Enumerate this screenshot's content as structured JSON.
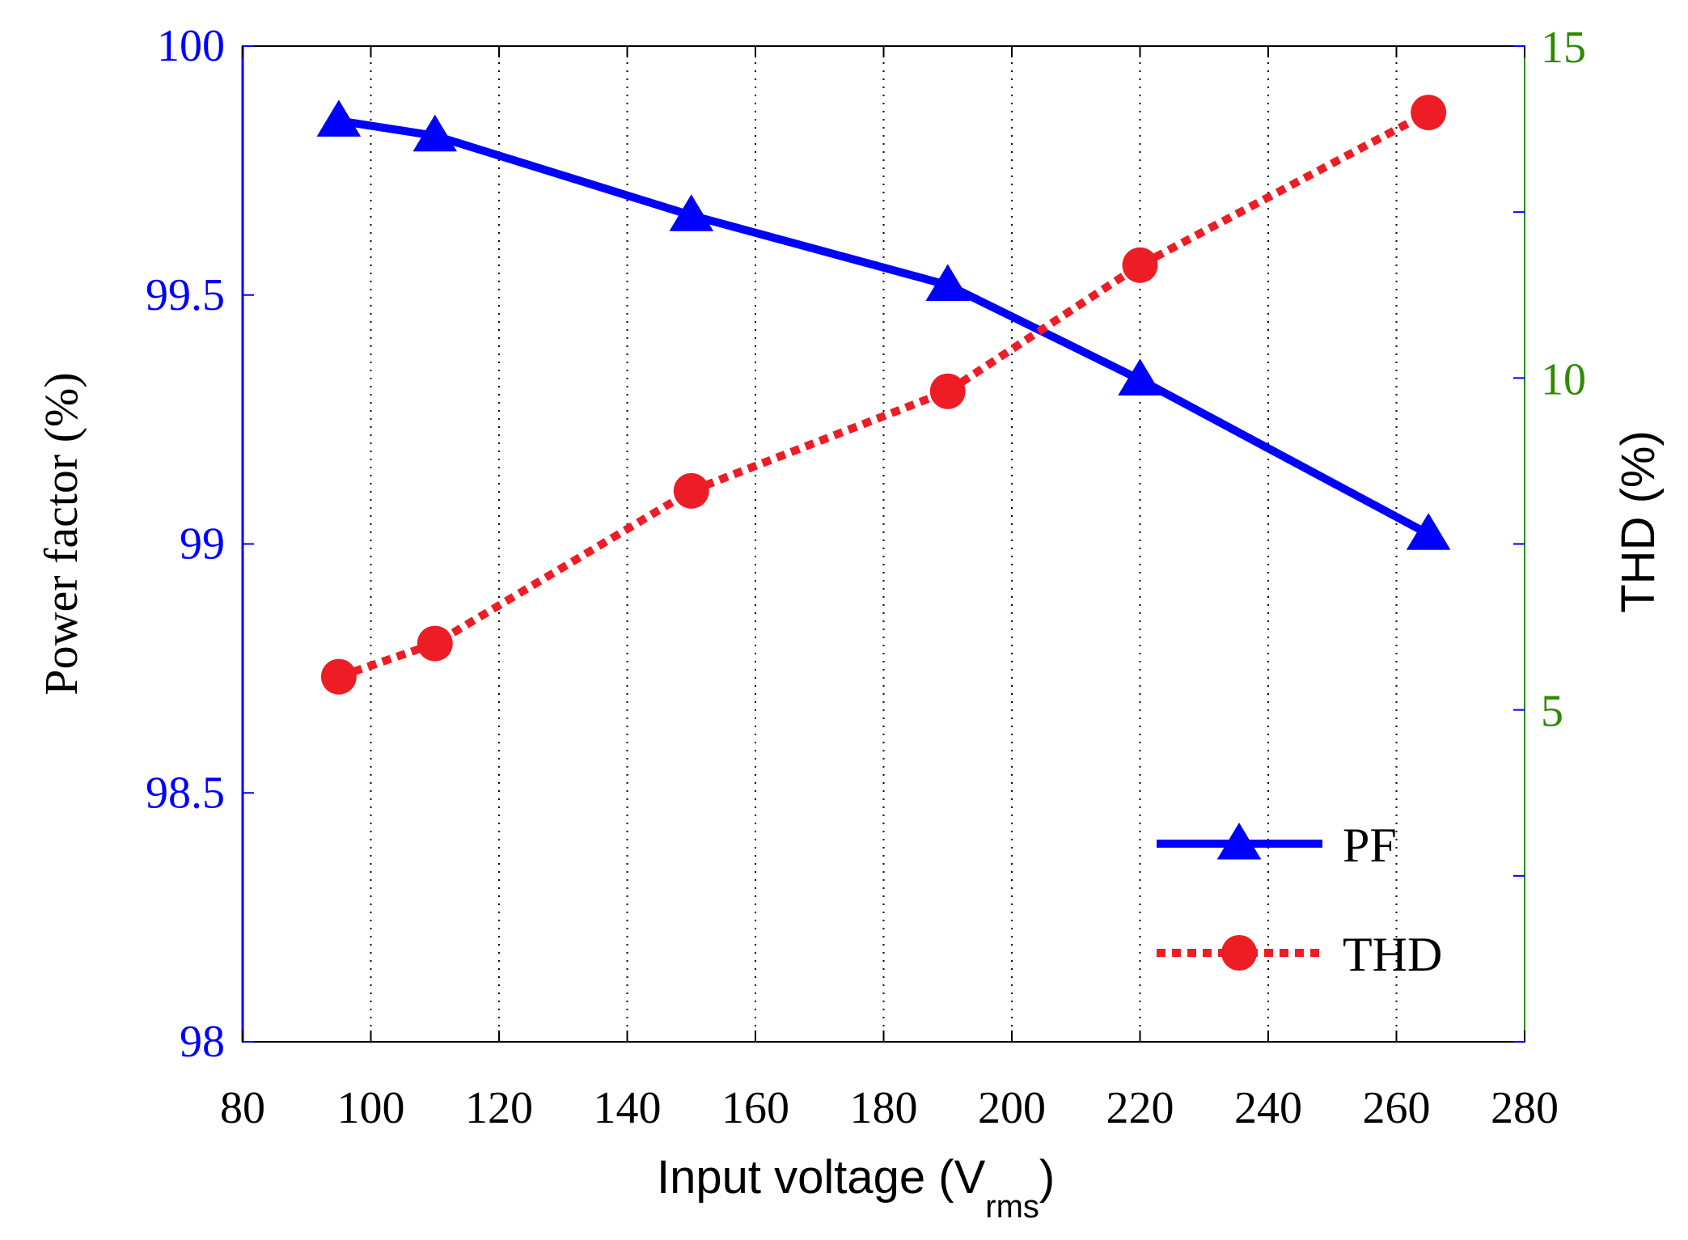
{
  "chart_data": {
    "type": "line",
    "x": [
      95,
      110,
      150,
      190,
      220,
      265
    ],
    "xlabel_main": "Input voltage (V",
    "xlabel_sub": "rms",
    "xlabel_close": ")",
    "xlim": [
      80,
      280
    ],
    "xticks": [
      80,
      100,
      120,
      140,
      160,
      180,
      200,
      220,
      240,
      260,
      280
    ],
    "ylabel_left": "Power factor  (%)",
    "ylim_left": [
      98,
      100
    ],
    "yticks_left": [
      "98",
      "98.5",
      "99",
      "99.5",
      "100"
    ],
    "yticks_left_values": [
      98,
      98.5,
      99,
      99.5,
      100
    ],
    "ylabel_right": "THD (%)",
    "ylim_right": [
      0,
      15
    ],
    "yticks_right": [
      "5",
      "10",
      "15"
    ],
    "yticks_right_values": [
      5,
      10,
      15
    ],
    "series": [
      {
        "name": "PF",
        "axis": "left",
        "values": [
          99.85,
          99.82,
          99.66,
          99.52,
          99.33,
          99.02
        ],
        "color": "#0000ff",
        "marker": "triangle",
        "line_style": "solid"
      },
      {
        "name": "THD",
        "axis": "right",
        "values": [
          5.5,
          6.0,
          8.3,
          9.8,
          11.7,
          14.0
        ],
        "color": "#ee1c24",
        "marker": "circle",
        "line_style": "dotted"
      }
    ],
    "legend_position": "bottom-right",
    "grid": "vertical dotted",
    "colors": {
      "left_axis": "#0000ff",
      "right_axis": "#2e8b00",
      "text": "#000000"
    }
  }
}
